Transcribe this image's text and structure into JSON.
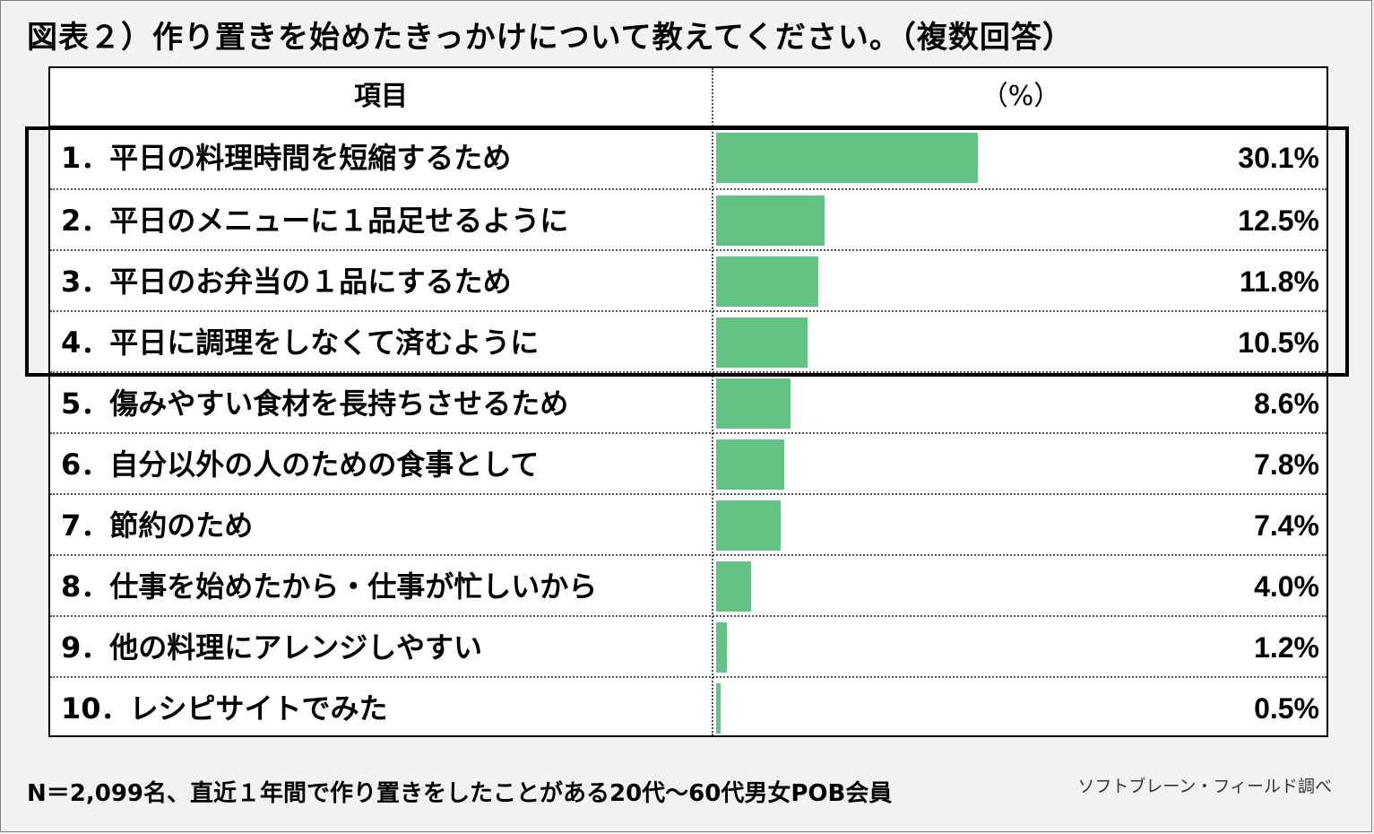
{
  "title": "図表２）作り置きを始めたきっかけについて教えてください。（複数回答）",
  "table": {
    "header_item": "項目",
    "header_pct": "（%）"
  },
  "chart_data": {
    "type": "bar",
    "orientation": "horizontal",
    "title": "図表２）作り置きを始めたきっかけについて教えてください。（複数回答）",
    "categories": [
      "1．平日の料理時間を短縮するため",
      "2．平日のメニューに１品足せるように",
      "3．平日のお弁当の１品にするため",
      "4．平日に調理をしなくて済むように",
      "5．傷みやすい食材を長持ちさせるため",
      "6．自分以外の人のための食事として",
      "7．節約のため",
      "8．仕事を始めたから・仕事が忙しいから",
      "9．他の料理にアレンジしやすい",
      "10．レシピサイトでみた"
    ],
    "values": [
      30.1,
      12.5,
      11.8,
      10.5,
      8.6,
      7.8,
      7.4,
      4.0,
      1.2,
      0.5
    ],
    "value_labels": [
      "30.1%",
      "12.5%",
      "11.8%",
      "10.5%",
      "8.6%",
      "7.8%",
      "7.4%",
      "4.0%",
      "1.2%",
      "0.5%"
    ],
    "unit": "（%）",
    "bar_color": "#63c385",
    "highlighted_rows": [
      1,
      2,
      3,
      4
    ]
  },
  "footnote": "N＝2,099名、直近１年間で作り置きをしたことがある20代～60代男女POB会員",
  "source": "ソフトブレーン・フィールド調べ"
}
